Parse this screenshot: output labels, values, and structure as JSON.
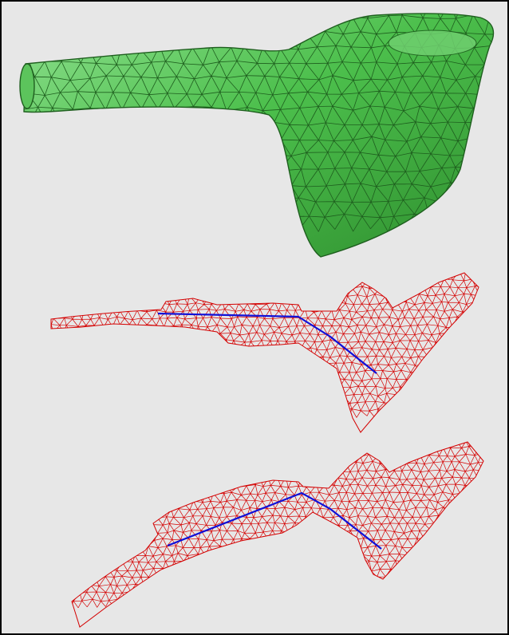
{
  "colors": {
    "background": "#e7e7e7",
    "border": "#000000",
    "surface_fill": "#4cbf4c",
    "surface_fill_light": "#8fe08f",
    "surface_fill_dark": "#2f8f2f",
    "surface_wire": "#1e5e1e",
    "mesh_wire": "#d40000",
    "centerline": "#1010d8"
  },
  "panels": [
    {
      "name": "surface-mesh-panel",
      "style": "shaded-wireframe"
    },
    {
      "name": "skeleton-panel-1",
      "style": "wireframe-with-centerline"
    },
    {
      "name": "skeleton-panel-2",
      "style": "wireframe-with-centerline"
    }
  ]
}
